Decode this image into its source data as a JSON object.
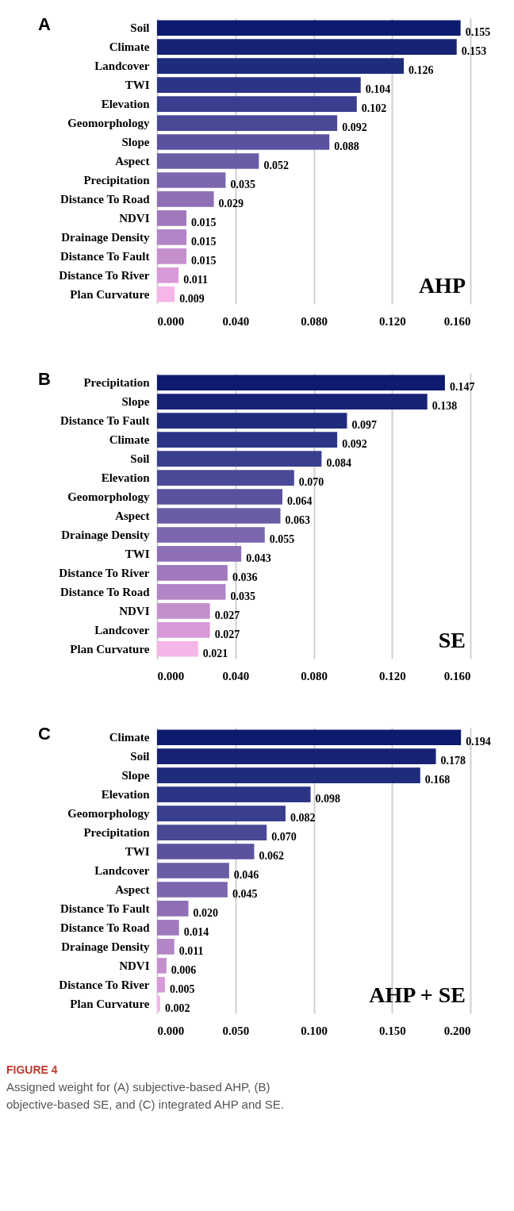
{
  "chart_data": [
    {
      "type": "bar",
      "orientation": "horizontal",
      "grid": "x",
      "annotations": [
        "A",
        "AHP"
      ],
      "categories": [
        "Soil",
        "Climate",
        "Landcover",
        "TWI",
        "Elevation",
        "Geomorphology",
        "Slope",
        "Aspect",
        "Precipitation",
        "Distance To Road",
        "NDVI",
        "Drainage Density",
        "Distance To Fault",
        "Distance To River",
        "Plan Curvature"
      ],
      "values": [
        0.155,
        0.153,
        0.126,
        0.104,
        0.102,
        0.092,
        0.088,
        0.052,
        0.035,
        0.029,
        0.015,
        0.015,
        0.015,
        0.011,
        0.009
      ],
      "value_labels": [
        "0.155",
        "0.153",
        "0.126",
        "0.104",
        "0.102",
        "0.092",
        "0.088",
        "0.052",
        "0.035",
        "0.029",
        "0.015",
        "0.015",
        "0.015",
        "0.011",
        "0.009"
      ],
      "colors": [
        "#0d1a6e",
        "#172274",
        "#1f2c7c",
        "#2c3585",
        "#3a3e8e",
        "#4a4996",
        "#5a529e",
        "#6b5ca6",
        "#7c66ae",
        "#8e6fb5",
        "#a079bd",
        "#b384c6",
        "#c58fce",
        "#d89ad8",
        "#f5b6e8"
      ],
      "xlim": [
        0,
        0.16
      ],
      "xticks": [
        {
          "value": 0,
          "label": "0.000"
        },
        {
          "value": 0.04,
          "label": "0.040"
        },
        {
          "value": 0.08,
          "label": "0.080"
        },
        {
          "value": 0.12,
          "label": "0.120"
        },
        {
          "value": 0.16,
          "label": "0.160"
        }
      ]
    },
    {
      "type": "bar",
      "orientation": "horizontal",
      "grid": "x",
      "annotations": [
        "B",
        "SE"
      ],
      "categories": [
        "Precipitation",
        "Slope",
        "Distance To Fault",
        "Climate",
        "Soil",
        "Elevation",
        "Geomorphology",
        "Aspect",
        "Drainage Density",
        "TWI",
        "Distance To River",
        "Distance To Road",
        "NDVI",
        "Landcover",
        "Plan Curvature"
      ],
      "values": [
        0.147,
        0.138,
        0.097,
        0.092,
        0.084,
        0.07,
        0.064,
        0.063,
        0.055,
        0.043,
        0.036,
        0.035,
        0.027,
        0.027,
        0.021
      ],
      "value_labels": [
        "0.147",
        "0.138",
        "0.097",
        "0.092",
        "0.084",
        "0.070",
        "0.064",
        "0.063",
        "0.055",
        "0.043",
        "0.036",
        "0.035",
        "0.027",
        "0.027",
        "0.021"
      ],
      "colors": [
        "#0d1a6e",
        "#172274",
        "#1f2c7c",
        "#2c3585",
        "#3a3e8e",
        "#4a4996",
        "#5a529e",
        "#6b5ca6",
        "#7c66ae",
        "#8e6fb5",
        "#a079bd",
        "#b384c6",
        "#c58fce",
        "#d89ad8",
        "#f5b6e8"
      ],
      "xlim": [
        0,
        0.16
      ],
      "xticks": [
        {
          "value": 0,
          "label": "0.000"
        },
        {
          "value": 0.04,
          "label": "0.040"
        },
        {
          "value": 0.08,
          "label": "0.080"
        },
        {
          "value": 0.12,
          "label": "0.120"
        },
        {
          "value": 0.16,
          "label": "0.160"
        }
      ]
    },
    {
      "type": "bar",
      "orientation": "horizontal",
      "grid": "x",
      "annotations": [
        "C",
        "AHP + SE",
        "FIGURE 4",
        "Assigned weight for (A) subjective-based AHP, (B) objective-based SE, and (C) integrated AHP and SE."
      ],
      "categories": [
        "Climate",
        "Soil",
        "Slope",
        "Elevation",
        "Geomorphology",
        "Precipitation",
        "TWI",
        "Landcover",
        "Aspect",
        "Distance To Fault",
        "Distance To Road",
        "Drainage Density",
        "NDVI",
        "Distance To River",
        "Plan Curvature"
      ],
      "values": [
        0.194,
        0.178,
        0.168,
        0.098,
        0.082,
        0.07,
        0.062,
        0.046,
        0.045,
        0.02,
        0.014,
        0.011,
        0.006,
        0.005,
        0.002
      ],
      "value_labels": [
        "0.194",
        "0.178",
        "0.168",
        "0.098",
        "0.082",
        "0.070",
        "0.062",
        "0.046",
        "0.045",
        "0.020",
        "0.014",
        "0.011",
        "0.006",
        "0.005",
        "0.002"
      ],
      "colors": [
        "#0d1a6e",
        "#172274",
        "#1f2c7c",
        "#2c3585",
        "#3a3e8e",
        "#4a4996",
        "#5a529e",
        "#6b5ca6",
        "#7c66ae",
        "#8e6fb5",
        "#a079bd",
        "#b384c6",
        "#c58fce",
        "#d89ad8",
        "#f5b6e8"
      ],
      "xlim": [
        0,
        0.2
      ],
      "xticks": [
        {
          "value": 0,
          "label": "0.000"
        },
        {
          "value": 0.05,
          "label": "0.050"
        },
        {
          "value": 0.1,
          "label": "0.100"
        },
        {
          "value": 0.15,
          "label": "0.150"
        },
        {
          "value": 0.2,
          "label": "0.200"
        }
      ]
    }
  ]
}
